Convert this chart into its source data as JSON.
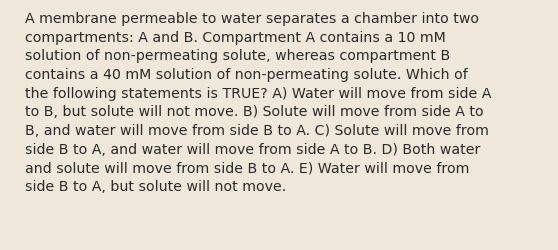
{
  "background_color": "#efe8da",
  "text_color": "#2b2b2b",
  "font_size": 10.2,
  "font_family": "DejaVu Sans",
  "lines": [
    "A membrane permeable to water separates a chamber into two",
    "compartments: A and B. Compartment A contains a 10 mM",
    "solution of non-permeating solute, whereas compartment B",
    "contains a 40 mM solution of non-permeating solute. Which of",
    "the following statements is TRUE? A) Water will move from side A",
    "to B, but solute will not move. B) Solute will move from side A to",
    "B, and water will move from side B to A. C) Solute will move from",
    "side B to A, and water will move from side A to B. D) Both water",
    "and solute will move from side B to A. E) Water will move from",
    "side B to A, but solute will not move."
  ],
  "fig_width": 5.58,
  "fig_height": 2.51,
  "dpi": 100
}
